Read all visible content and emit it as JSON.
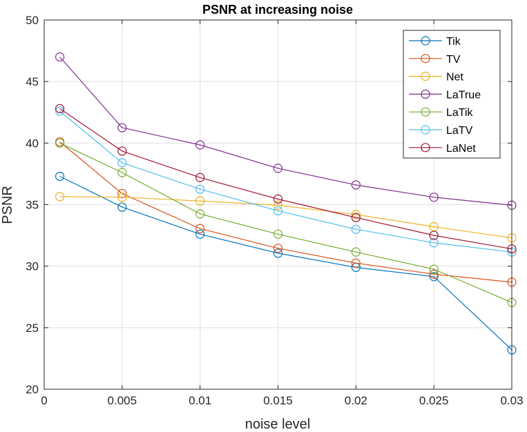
{
  "chart_data": {
    "type": "line",
    "title": "PSNR at increasing noise",
    "xlabel": "noise level",
    "ylabel": "PSNR",
    "xlim": [
      0,
      0.03
    ],
    "ylim": [
      20,
      50
    ],
    "x_ticks": [
      "0",
      "0.005",
      "0.01",
      "0.015",
      "0.02",
      "0.025",
      "0.03"
    ],
    "y_ticks": [
      "20",
      "25",
      "30",
      "35",
      "40",
      "45",
      "50"
    ],
    "grid": true,
    "legend_position": "top-right",
    "marker": "circle",
    "x": [
      0.001,
      0.005,
      0.01,
      0.015,
      0.02,
      0.025,
      0.03
    ],
    "series": [
      {
        "name": "Tik",
        "color": "#0072BD",
        "values": [
          37.3,
          34.8,
          32.6,
          31.05,
          29.9,
          29.15,
          23.2
        ]
      },
      {
        "name": "TV",
        "color": "#D95319",
        "values": [
          40.1,
          35.9,
          33.05,
          31.45,
          30.25,
          29.35,
          28.7
        ]
      },
      {
        "name": "Net",
        "color": "#EDB120",
        "values": [
          35.65,
          35.6,
          35.3,
          34.95,
          34.2,
          33.2,
          32.3
        ]
      },
      {
        "name": "LaTrue",
        "color": "#7E2F8E",
        "values": [
          47.0,
          41.25,
          39.85,
          37.95,
          36.6,
          35.6,
          34.95
        ]
      },
      {
        "name": "LaTik",
        "color": "#77AC30",
        "values": [
          40.0,
          37.6,
          34.25,
          32.6,
          31.15,
          29.75,
          27.05
        ]
      },
      {
        "name": "LaTV",
        "color": "#4DBEEE",
        "values": [
          42.6,
          38.4,
          36.25,
          34.5,
          33.0,
          31.9,
          31.15
        ]
      },
      {
        "name": "LaNet",
        "color": "#A2142F",
        "values": [
          42.8,
          39.35,
          37.2,
          35.45,
          33.95,
          32.5,
          31.4
        ]
      }
    ]
  }
}
